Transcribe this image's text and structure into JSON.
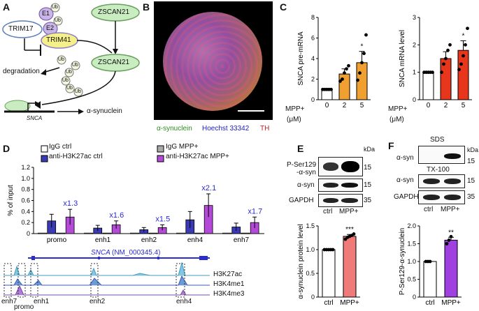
{
  "panels": {
    "A": {
      "label": "A",
      "trim17": "TRIM17",
      "e1": "E1",
      "e2": "E2",
      "ub": "Ub",
      "zscan21_top": "ZSCAN21",
      "trim41": "TRIM41",
      "zscan21_mid": "ZSCAN21",
      "degradation": "degradation",
      "gene": "SNCA",
      "product": "α-synuclein"
    },
    "B": {
      "label": "B",
      "legend_green": "α-synuclein",
      "legend_blue": "Hoechst 33342",
      "legend_red": "TH"
    },
    "C": {
      "label": "C",
      "mpp_label": "MPP+",
      "unit": "(μM)",
      "colors": {
        "pre": "#f0a030",
        "mrna": "#e8361c",
        "white": "#ffffff"
      },
      "chart_data": [
        {
          "type": "bar",
          "title": "",
          "ylabel": "SNCA pre-mRNA",
          "categories": [
            "0",
            "2",
            "5"
          ],
          "values": [
            1.0,
            2.5,
            3.6
          ],
          "errors": [
            0.0,
            0.5,
            1.1
          ],
          "ylim": [
            0,
            8
          ],
          "yticks": [
            "0",
            "2",
            "4",
            "6",
            "8"
          ],
          "significance": [
            "",
            "",
            "*"
          ],
          "points": [
            [
              1,
              1,
              1,
              1,
              1
            ],
            [
              1.8,
              2.0,
              2.6,
              3.0,
              3.3
            ],
            [
              1.9,
              2.6,
              3.6,
              4.5,
              6.3
            ]
          ]
        },
        {
          "type": "bar",
          "title": "",
          "ylabel": "SNCA mRNA level",
          "categories": [
            "0",
            "2",
            "5"
          ],
          "values": [
            1.0,
            1.5,
            1.8
          ],
          "errors": [
            0.0,
            0.25,
            0.35
          ],
          "ylim": [
            0,
            3
          ],
          "yticks": [
            "0",
            "1",
            "2",
            "3"
          ],
          "significance": [
            "",
            "",
            "*"
          ],
          "points": [
            [
              1,
              1,
              1,
              1,
              1
            ],
            [
              1.0,
              1.3,
              1.5,
              1.8,
              2.0
            ],
            [
              1.1,
              1.3,
              1.6,
              2.0,
              2.6
            ]
          ]
        }
      ]
    },
    "D": {
      "label": "D",
      "colors": {
        "igg_ctrl": "#ffffff",
        "k27_ctrl": "#3a3ab4",
        "igg_mpp": "#aaaaaa",
        "k27_mpp": "#b44ad8"
      },
      "chart_data": {
        "type": "bar",
        "ylabel": "% of input",
        "ylim": [
          0,
          1.2
        ],
        "yticks": [
          "0",
          "0.2",
          "0.4",
          "0.6",
          "0.8",
          "1.0",
          "1.2"
        ],
        "categories": [
          "promo",
          "enh1",
          "enh2",
          "enh4",
          "enh7"
        ],
        "fold_changes": [
          "x1.3",
          "x1.6",
          "x1.5",
          "x2.1",
          "x1.7"
        ],
        "series": [
          {
            "name": "IgG ctrl",
            "values": [
              0.01,
              0.01,
              0.01,
              0.01,
              0.01
            ]
          },
          {
            "name": "anti-H3K27ac ctrl",
            "values": [
              0.23,
              0.1,
              0.07,
              0.25,
              0.12
            ]
          },
          {
            "name": "IgG MPP+",
            "values": [
              0.01,
              0.01,
              0.01,
              0.01,
              0.01
            ]
          },
          {
            "name": "anti-H3K27ac MPP+",
            "values": [
              0.3,
              0.16,
              0.11,
              0.51,
              0.2
            ]
          }
        ],
        "errors": [
          [
            0.0,
            0.0,
            0.0,
            0.0,
            0.0
          ],
          [
            0.12,
            0.05,
            0.04,
            0.15,
            0.07
          ],
          [
            0.0,
            0.0,
            0.0,
            0.0,
            0.0
          ],
          [
            0.14,
            0.07,
            0.05,
            0.21,
            0.1
          ]
        ]
      },
      "track": {
        "gene": "SNCA",
        "accession": "(NM_000345.4)",
        "marks": [
          "H3K27ac",
          "H3K4me1",
          "H3K4me3"
        ],
        "regions": [
          "enh7",
          "promo",
          "enh1",
          "enh2",
          "enh4"
        ]
      }
    },
    "E": {
      "label": "E",
      "row1": "P-Ser129\n-α-syn",
      "row2": "α-syn",
      "row3": "GAPDH",
      "mw1": "15",
      "mw2": "15",
      "mw3": "35",
      "kda": "kDa",
      "lane1": "ctrl",
      "lane2": "MPP+",
      "colors": {
        "bar": "#f07a7a",
        "bar2": "#a040e0"
      },
      "chart_data": [
        {
          "type": "bar",
          "ylabel": "α-synuclein protein level",
          "categories": [
            "ctrl",
            "MPP+"
          ],
          "values": [
            1.0,
            1.28
          ],
          "errors": [
            0.0,
            0.04
          ],
          "ylim": [
            0,
            1.5
          ],
          "yticks": [
            "0",
            "0.5",
            "1.0",
            "1.5"
          ],
          "significance": [
            "",
            "***"
          ],
          "points": [
            [
              1,
              1,
              1,
              1,
              1
            ],
            [
              1.22,
              1.26,
              1.28,
              1.3,
              1.33
            ]
          ]
        },
        {
          "type": "bar",
          "ylabel": "P-Ser129-α-synuclein",
          "categories": [
            "ctrl",
            "MPP+"
          ],
          "values": [
            1.0,
            1.6
          ],
          "errors": [
            0.0,
            0.08
          ],
          "ylim": [
            0,
            2.0
          ],
          "yticks": [
            "0",
            "0.5",
            "1.0",
            "1.5",
            "2.0"
          ],
          "significance": [
            "",
            "**"
          ],
          "points": [
            [
              1,
              1,
              1
            ],
            [
              1.5,
              1.6,
              1.7
            ]
          ]
        }
      ]
    },
    "F": {
      "label": "F",
      "sds": "SDS",
      "tx": "TX-100",
      "row1": "α-syn",
      "row2": "α-syn",
      "row3": "GAPDH",
      "kda": "kDa",
      "mw1": "15",
      "mw2": "15",
      "mw3": "35",
      "lane1": "ctrl",
      "lane2": "MPP+"
    }
  }
}
